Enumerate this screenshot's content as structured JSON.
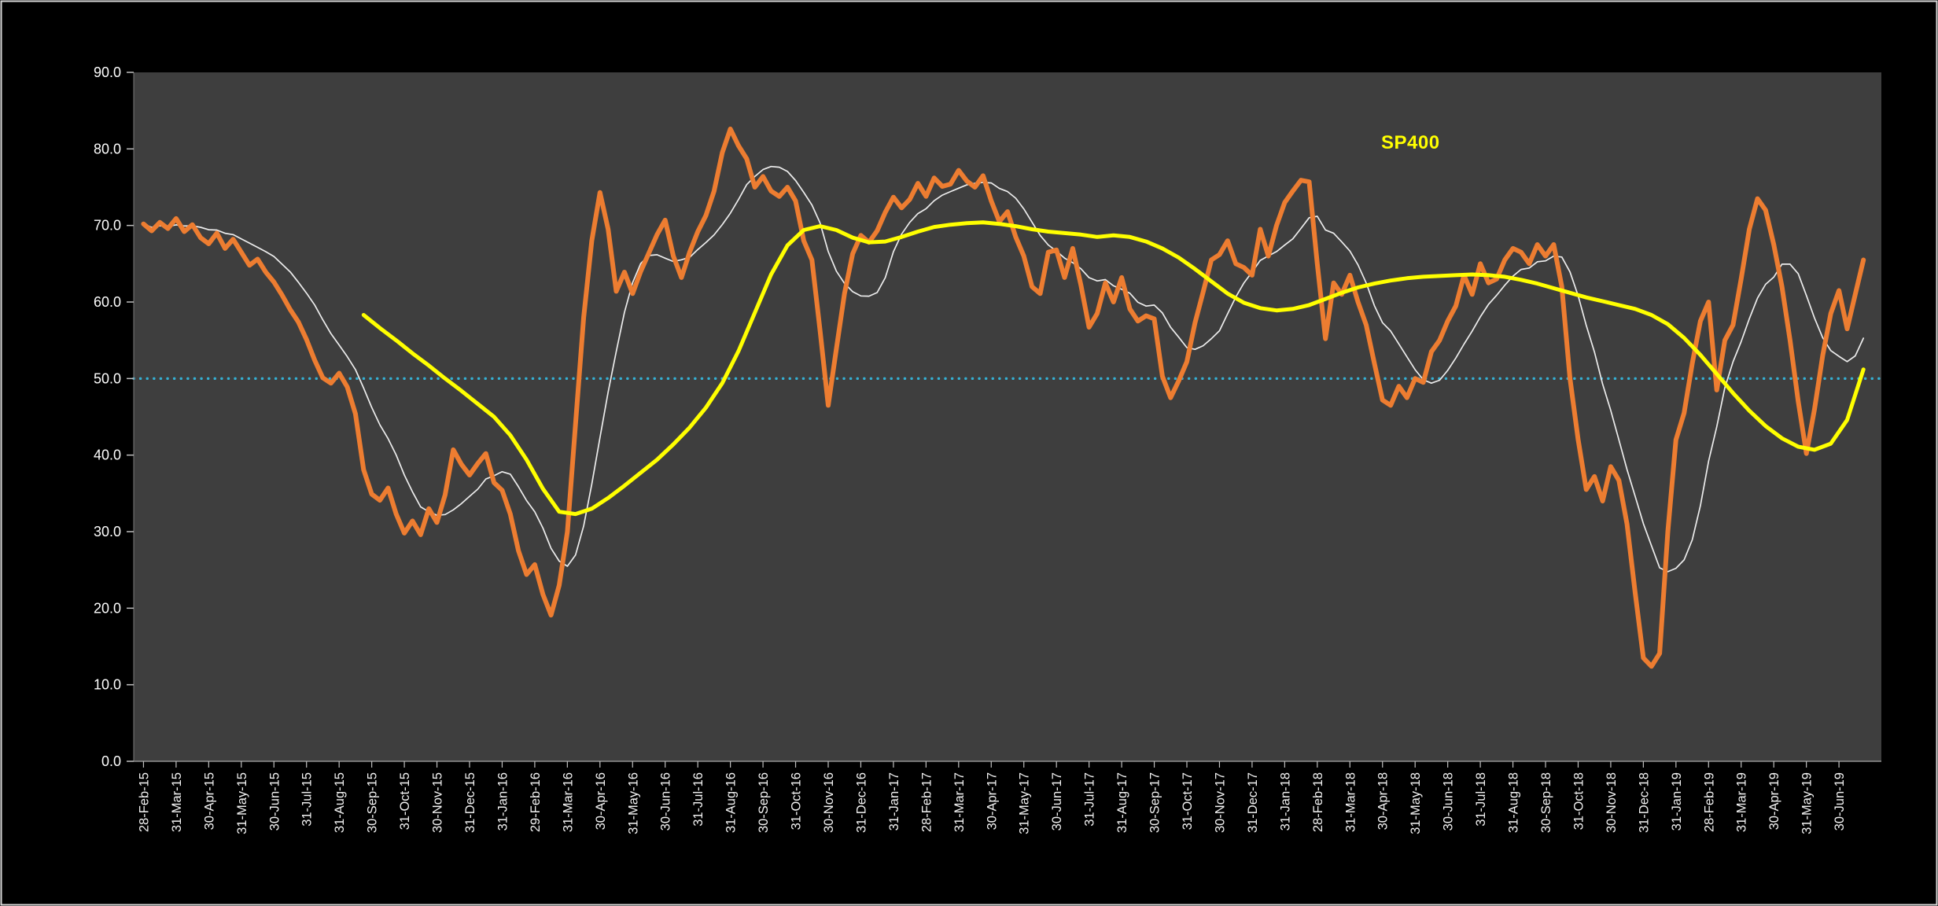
{
  "chart_data": {
    "type": "line",
    "legend_label": "SP400",
    "legend_color": "#FFFF00",
    "plot": {
      "background": "#3E3E3E",
      "page_background": "#000000"
    },
    "threshold_line": {
      "value": 50.0,
      "color": "#35AFD2",
      "style": "dotted"
    },
    "y_axis": {
      "min": 0,
      "max": 90,
      "tick_step": 10,
      "tick_labels": [
        "0.0",
        "10.0",
        "20.0",
        "30.0",
        "40.0",
        "50.0",
        "60.0",
        "70.0",
        "80.0",
        "90.0"
      ]
    },
    "x_axis": {
      "domain": [
        -0.3,
        53.3
      ],
      "labels": [
        "28-Feb-15",
        "31-Mar-15",
        "30-Apr-15",
        "31-May-15",
        "30-Jun-15",
        "31-Jul-15",
        "31-Aug-15",
        "30-Sep-15",
        "31-Oct-15",
        "30-Nov-15",
        "31-Dec-15",
        "31-Jan-16",
        "29-Feb-16",
        "31-Mar-16",
        "30-Apr-16",
        "31-May-16",
        "30-Jun-16",
        "31-Jul-16",
        "31-Aug-16",
        "30-Sep-16",
        "31-Oct-16",
        "30-Nov-16",
        "31-Dec-16",
        "31-Jan-17",
        "28-Feb-17",
        "31-Mar-17",
        "30-Apr-17",
        "31-May-17",
        "30-Jun-17",
        "31-Jul-17",
        "31-Aug-17",
        "30-Sep-17",
        "31-Oct-17",
        "30-Nov-17",
        "31-Dec-17",
        "31-Jan-18",
        "28-Feb-18",
        "31-Mar-18",
        "30-Apr-18",
        "31-May-18",
        "30-Jun-18",
        "31-Jul-18",
        "31-Aug-18",
        "30-Sep-18",
        "31-Oct-18",
        "30-Nov-18",
        "31-Dec-18",
        "31-Jan-19",
        "28-Feb-19",
        "31-Mar-19",
        "30-Apr-19",
        "31-May-19",
        "30-Jun-19"
      ]
    },
    "series": [
      {
        "name": "orange-oscillator",
        "color": "#ED7D31",
        "stroke_width": 6,
        "x_start": 0,
        "x_step": 0.25,
        "values": [
          70.2,
          69.3,
          70.4,
          69.6,
          70.9,
          69.2,
          70.1,
          68.4,
          67.6,
          69.0,
          67.0,
          68.2,
          66.5,
          64.8,
          65.6,
          63.9,
          62.6,
          60.9,
          59.0,
          57.4,
          55.1,
          52.4,
          50.1,
          49.4,
          50.7,
          48.9,
          45.4,
          38.1,
          34.9,
          34.1,
          35.7,
          32.3,
          29.8,
          31.4,
          29.6,
          33.0,
          31.2,
          34.8,
          40.7,
          38.8,
          37.4,
          38.9,
          40.2,
          36.4,
          35.4,
          32.3,
          27.5,
          24.4,
          25.7,
          21.8,
          19.1,
          23.0,
          30.0,
          44.0,
          58.0,
          68.0,
          74.3,
          69.5,
          61.4,
          63.9,
          61.1,
          64.0,
          66.4,
          68.8,
          70.7,
          66.0,
          63.2,
          66.5,
          69.2,
          71.3,
          74.5,
          79.5,
          82.6,
          80.4,
          78.7,
          75.0,
          76.4,
          74.5,
          73.8,
          75.0,
          73.2,
          68.0,
          65.5,
          56.3,
          46.5,
          53.9,
          61.1,
          66.3,
          68.7,
          67.8,
          69.3,
          71.7,
          73.7,
          72.3,
          73.4,
          75.5,
          73.8,
          76.2,
          75.1,
          75.4,
          77.2,
          75.8,
          75.0,
          76.5,
          73.2,
          70.5,
          71.8,
          68.5,
          66.0,
          62.0,
          61.1,
          66.5,
          66.8,
          63.2,
          67.0,
          62.2,
          56.7,
          58.5,
          62.5,
          60.0,
          63.2,
          59.1,
          57.5,
          58.2,
          57.8,
          50.3,
          47.5,
          49.7,
          52.2,
          57.3,
          61.3,
          65.5,
          66.2,
          68.0,
          65.0,
          64.5,
          63.5,
          69.5,
          66.0,
          70.0,
          73.0,
          74.5,
          75.9,
          75.7,
          65.0,
          55.2,
          62.5,
          61.0,
          63.5,
          60.0,
          57.0,
          52.0,
          47.2,
          46.5,
          49.0,
          47.5,
          50.0,
          49.5,
          53.5,
          55.0,
          57.5,
          59.5,
          63.5,
          61.0,
          65.0,
          62.5,
          63.0,
          65.5,
          67.0,
          66.5,
          65.0,
          67.5,
          66.0,
          67.5,
          62.0,
          50.0,
          42.0,
          35.5,
          37.2,
          34.0,
          38.5,
          36.7,
          31.0,
          22.0,
          13.5,
          12.4,
          14.1,
          30.0,
          42.0,
          45.5,
          52.0,
          57.5,
          60.0,
          48.5,
          55.0,
          57.0,
          63.0,
          69.5,
          73.5,
          72.0,
          67.5,
          62.0,
          55.0,
          47.0,
          40.2,
          46.0,
          53.0,
          58.5,
          61.5,
          56.5,
          61.0,
          65.5
        ]
      },
      {
        "name": "white-smoothed-line",
        "color": "#EDEDED",
        "stroke_width": 1.7,
        "derived": "trailing_moving_average",
        "derived_from": "orange-oscillator",
        "window": 8
      },
      {
        "name": "sp400-line",
        "color": "#FFFF00",
        "stroke_width": 5,
        "x_start": 6.75,
        "x_step": 0.5,
        "values": [
          58.3,
          56.6,
          55.0,
          53.3,
          51.7,
          50.0,
          48.4,
          46.7,
          45.0,
          42.6,
          39.4,
          35.6,
          32.6,
          32.3,
          33.0,
          34.4,
          36.0,
          37.7,
          39.4,
          41.4,
          43.6,
          46.2,
          49.4,
          53.6,
          58.6,
          63.6,
          67.4,
          69.4,
          69.9,
          69.4,
          68.4,
          67.8,
          67.9,
          68.5,
          69.2,
          69.8,
          70.1,
          70.3,
          70.4,
          70.2,
          69.9,
          69.5,
          69.2,
          69.0,
          68.8,
          68.5,
          68.7,
          68.5,
          67.9,
          67.0,
          65.8,
          64.3,
          62.7,
          61.1,
          59.9,
          59.2,
          58.9,
          59.1,
          59.6,
          60.4,
          61.2,
          61.9,
          62.4,
          62.8,
          63.1,
          63.3,
          63.4,
          63.5,
          63.6,
          63.5,
          63.3,
          62.9,
          62.4,
          61.8,
          61.2,
          60.6,
          60.1,
          59.6,
          59.1,
          58.3,
          57.1,
          55.3,
          53.1,
          50.6,
          48.1,
          45.8,
          43.8,
          42.2,
          41.1,
          40.7,
          41.5,
          44.6,
          51.2
        ]
      }
    ]
  }
}
